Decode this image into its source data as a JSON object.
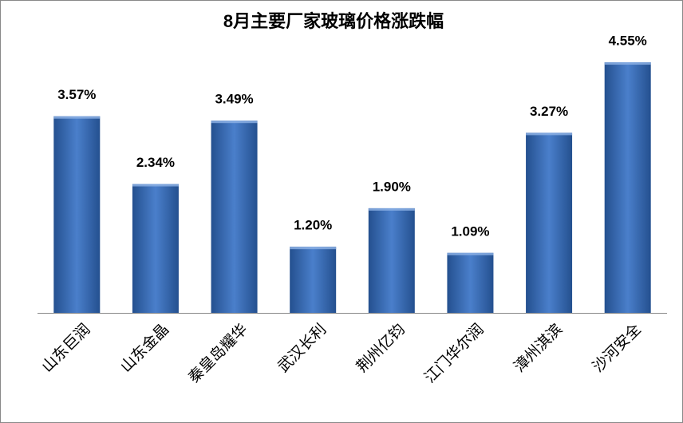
{
  "chart_data": {
    "type": "bar",
    "title": "8月主要厂家玻璃价格涨跌幅",
    "categories": [
      "山东巨润",
      "山东金晶",
      "秦皇岛耀华",
      "武汉长利",
      "荆州亿钧",
      "江门华尔润",
      "漳州淇滨",
      "沙河安全"
    ],
    "values": [
      3.57,
      2.34,
      3.49,
      1.2,
      1.9,
      1.09,
      3.27,
      4.55
    ],
    "value_labels": [
      "3.57%",
      "2.34%",
      "3.49%",
      "1.20%",
      "1.90%",
      "1.09%",
      "3.27%",
      "4.55%"
    ],
    "color": "#4a7fcb"
  }
}
